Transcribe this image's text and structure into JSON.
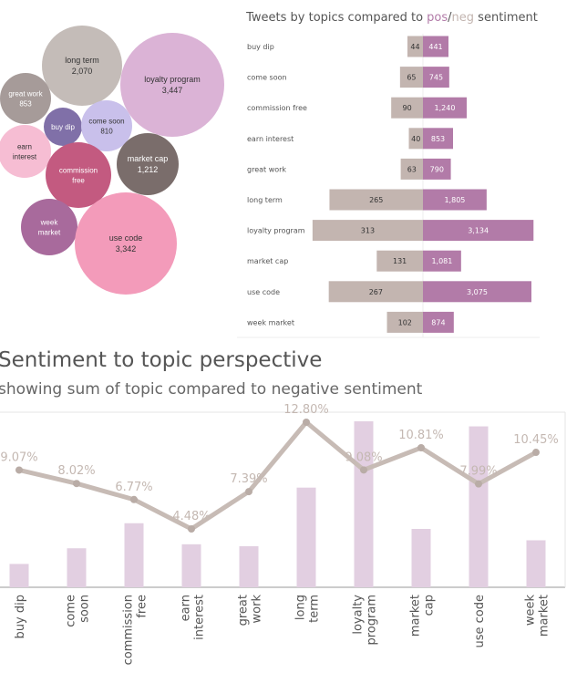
{
  "topics": [
    "buy dip",
    "come soon",
    "commission free",
    "earn interest",
    "great work",
    "long term",
    "loyalty program",
    "market cap",
    "use code",
    "week market"
  ],
  "colors": {
    "neg_bar": "#c3b5b0",
    "pos_bar": "#b27ba8",
    "perspective_bar": "#e2cfe1",
    "line": "#c7bbb5",
    "pos_word": "#b27ba8",
    "neg_word": "#c3b5b0"
  },
  "bubble_chart": {
    "bubbles": [
      {
        "name": "long term",
        "value": "2,070",
        "color": "#c4bcb8",
        "text_color": "#333333"
      },
      {
        "name": "loyalty program",
        "value": "3,447",
        "color": "#dbb3d6",
        "text_color": "#333333"
      },
      {
        "name": "great work",
        "value": "853",
        "color": "#a69b99",
        "text_color": "#ffffff"
      },
      {
        "name": "buy dip",
        "value": "",
        "color": "#8070a8",
        "text_color": "#ffffff"
      },
      {
        "name": "come soon",
        "value": "810",
        "color": "#c9c0eb",
        "text_color": "#333333"
      },
      {
        "name": "earn interest",
        "value": "",
        "color": "#f6bdd3",
        "text_color": "#333333"
      },
      {
        "name": "commission free",
        "value": "",
        "color": "#c35a80",
        "text_color": "#ffffff"
      },
      {
        "name": "market cap",
        "value": "1,212",
        "color": "#7a6d6b",
        "text_color": "#ffffff"
      },
      {
        "name": "week market",
        "value": "",
        "color": "#a86a9c",
        "text_color": "#ffffff"
      },
      {
        "name": "use code",
        "value": "3,342",
        "color": "#f39bba",
        "text_color": "#333333"
      }
    ]
  },
  "diverging_title": {
    "prefix": "Tweets by topics compared to ",
    "pos": "pos",
    "slash": "/",
    "neg": "neg",
    "suffix": " sentiment"
  },
  "heading": "Sentiment to topic perspective",
  "subheading": "showing sum of topic compared to negative sentiment",
  "chart_data": [
    {
      "type": "bar",
      "title": "Tweets by topics compared to pos/neg sentiment",
      "categories": [
        "buy dip",
        "come soon",
        "commission free",
        "earn interest",
        "great work",
        "long term",
        "loyalty program",
        "market cap",
        "use code",
        "week market"
      ],
      "series": [
        {
          "name": "neg",
          "values": [
            44,
            65,
            90,
            40,
            63,
            265,
            313,
            131,
            267,
            102
          ],
          "labels": [
            "44",
            "65",
            "90",
            "40",
            "63",
            "265",
            "313",
            "131",
            "267",
            "102"
          ]
        },
        {
          "name": "pos",
          "values": [
            441,
            745,
            1240,
            853,
            790,
            1805,
            3134,
            1081,
            3075,
            874
          ],
          "labels": [
            "441",
            "745",
            "1,240",
            "853",
            "790",
            "1,805",
            "3,134",
            "1,081",
            "3,075",
            "874"
          ]
        }
      ]
    },
    {
      "type": "bar",
      "title": "Sentiment to topic perspective",
      "subtitle": "showing sum of topic compared to negative sentiment",
      "categories": [
        "buy dip",
        "come soon",
        "commission free",
        "earn interest",
        "great work",
        "long term",
        "loyalty program",
        "market cap",
        "use code",
        "week market"
      ],
      "bar_values": [
        485,
        810,
        1330,
        893,
        853,
        2070,
        3447,
        1212,
        3342,
        976
      ],
      "line_values": [
        9.07,
        8.02,
        6.77,
        4.48,
        7.39,
        12.8,
        9.08,
        10.81,
        7.99,
        10.45
      ],
      "line_labels": [
        "9.07%",
        "8.02%",
        "6.77%",
        "4.48%",
        "7.39%",
        "12.80%",
        "9.08%",
        "10.81%",
        "7.99%",
        "10.45%"
      ]
    }
  ]
}
